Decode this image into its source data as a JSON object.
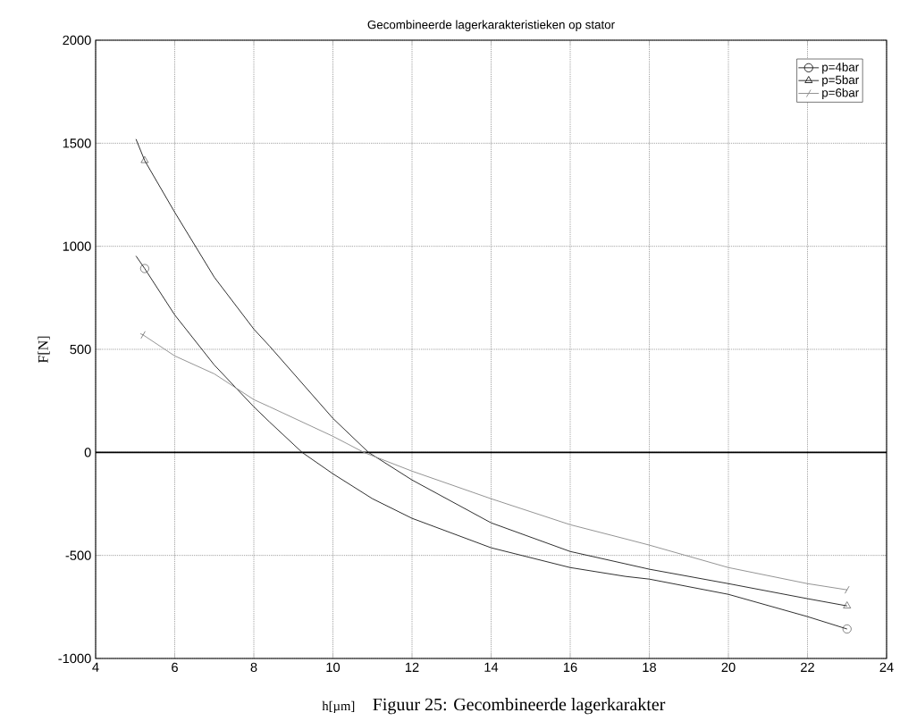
{
  "chart_data": {
    "type": "line",
    "title": "Gecombineerde lagerkarakteristieken op stator",
    "xlabel": "h[µm]",
    "ylabel": "F[N]",
    "annotations": [
      "Figuur 25: Gecombineerde lagerkarakter"
    ],
    "xlim": [
      4,
      24
    ],
    "ylim": [
      -1000,
      2000
    ],
    "xticks": [
      4,
      6,
      8,
      10,
      12,
      14,
      16,
      18,
      20,
      22,
      24
    ],
    "yticks": [
      -1000,
      -500,
      0,
      500,
      1000,
      1500,
      2000
    ],
    "grid": true,
    "legend": "top right",
    "line_style": "solid",
    "ref_lines": [
      {
        "axis": "y",
        "value": 0,
        "color": "#000000"
      }
    ],
    "series": [
      {
        "name": "p=4bar",
        "color": "#202020",
        "x": [
          5.02,
          5.24,
          6,
          7,
          8,
          8.4,
          9.22,
          10,
          11,
          12,
          14,
          16,
          17.4,
          18,
          20,
          22,
          23
        ],
        "values": [
          953,
          892,
          667,
          424,
          221,
          147,
          0,
          -104,
          -225,
          -320,
          -463,
          -559,
          -602,
          -615,
          -689,
          -797,
          -857
        ]
      },
      {
        "type": "scatter",
        "color": "#202020",
        "marker": "circle",
        "x": [
          5.24,
          23
        ],
        "values": [
          892,
          -857
        ]
      },
      {
        "name": "p=5bar",
        "color": "#202020",
        "x": [
          5.02,
          5.24,
          6,
          7,
          8,
          8.4,
          10,
          10.9,
          12,
          14,
          16,
          17.4,
          18,
          20,
          22,
          23
        ],
        "values": [
          1520,
          1416,
          1165,
          850,
          598,
          515,
          165,
          0,
          -134,
          -342,
          -481,
          -541,
          -567,
          -637,
          -710,
          -745
        ]
      },
      {
        "type": "scatter",
        "color": "#202020",
        "marker": "triangle",
        "x": [
          5.24,
          23
        ],
        "values": [
          1416,
          -745
        ]
      },
      {
        "name": "p=6bar",
        "color": "#8c8c8c",
        "x": [
          5.13,
          5.2,
          6,
          7,
          8,
          8.4,
          10,
          10.78,
          12,
          14,
          16,
          17.4,
          18,
          20,
          22,
          23
        ],
        "values": [
          576,
          570,
          468,
          381,
          256,
          221,
          78,
          0,
          -91,
          -225,
          -351,
          -420,
          -450,
          -559,
          -637,
          -667
        ]
      },
      {
        "type": "scatter",
        "color": "#202020",
        "marker": "cross",
        "x": [
          5.2,
          23
        ],
        "values": [
          570,
          -667
        ]
      }
    ]
  }
}
